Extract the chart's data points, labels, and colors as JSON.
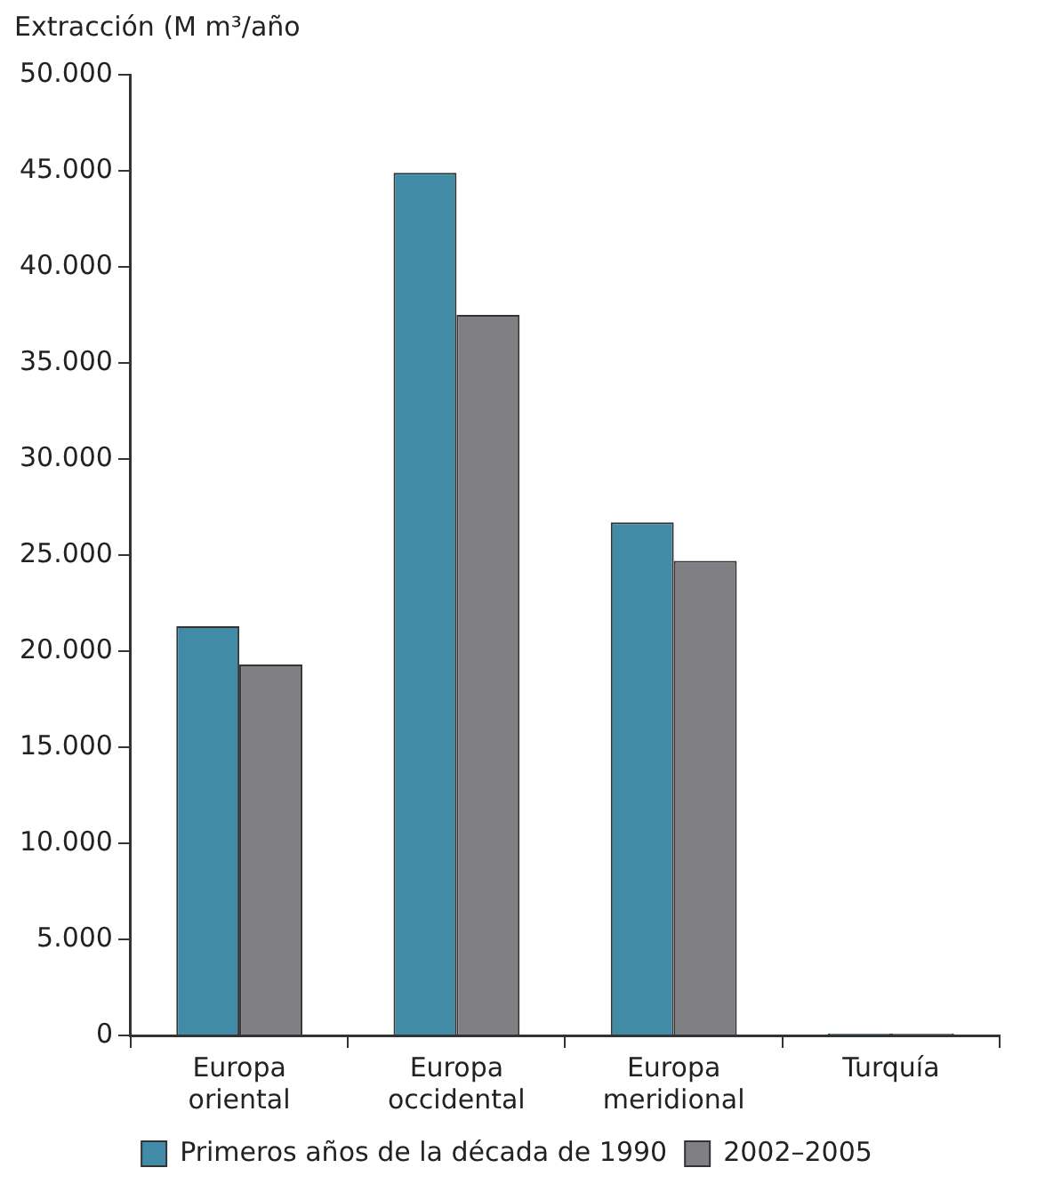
{
  "chart_data": {
    "type": "bar",
    "ylabel": "Extracción (M m³/año",
    "categories": [
      "Europa oriental",
      "Europa occidental",
      "Europa meridional",
      "Turquía"
    ],
    "series": [
      {
        "name": "Primeros años de la década de 1990",
        "color": "#428ba6",
        "values": [
          21300,
          44900,
          26700,
          100
        ]
      },
      {
        "name": "2002–2005",
        "color": "#808084",
        "values": [
          19300,
          37500,
          24700,
          100
        ]
      }
    ],
    "ylim": [
      0,
      50000
    ],
    "yticks": [
      {
        "value": 0,
        "label": "0"
      },
      {
        "value": 5000,
        "label": "5.000"
      },
      {
        "value": 10000,
        "label": "10.000"
      },
      {
        "value": 15000,
        "label": "15.000"
      },
      {
        "value": 20000,
        "label": "20.000"
      },
      {
        "value": 25000,
        "label": "25.000"
      },
      {
        "value": 30000,
        "label": "30.000"
      },
      {
        "value": 35000,
        "label": "35.000"
      },
      {
        "value": 40000,
        "label": "40.000"
      },
      {
        "value": 45000,
        "label": "45.000"
      },
      {
        "value": 50000,
        "label": "50.000"
      }
    ],
    "grid": false,
    "legend": "bottom"
  }
}
